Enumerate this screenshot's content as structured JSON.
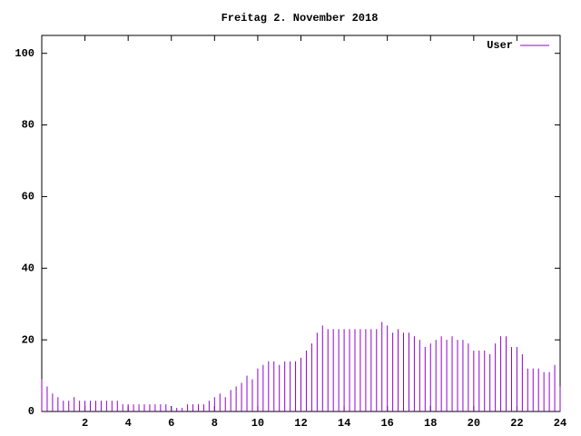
{
  "chart_data": {
    "type": "impulse",
    "title": "Freitag 2. November 2018",
    "series": [
      {
        "name": "User",
        "color": "#9400d3",
        "x": [
          0,
          0.25,
          0.5,
          0.75,
          1,
          1.25,
          1.5,
          1.75,
          2,
          2.25,
          2.5,
          2.75,
          3,
          3.25,
          3.5,
          3.75,
          4,
          4.25,
          4.5,
          4.75,
          5,
          5.25,
          5.5,
          5.75,
          6,
          6.25,
          6.5,
          6.75,
          7,
          7.25,
          7.5,
          7.75,
          8,
          8.25,
          8.5,
          8.75,
          9,
          9.25,
          9.5,
          9.75,
          10,
          10.25,
          10.5,
          10.75,
          11,
          11.25,
          11.5,
          11.75,
          12,
          12.25,
          12.5,
          12.75,
          13,
          13.25,
          13.5,
          13.75,
          14,
          14.25,
          14.5,
          14.75,
          15,
          15.25,
          15.5,
          15.75,
          16,
          16.25,
          16.5,
          16.75,
          17,
          17.25,
          17.5,
          17.75,
          18,
          18.25,
          18.5,
          18.75,
          19,
          19.25,
          19.5,
          19.75,
          20,
          20.25,
          20.5,
          20.75,
          21,
          21.25,
          21.5,
          21.75,
          22,
          22.25,
          22.5,
          22.75,
          23,
          23.25,
          23.5,
          23.75,
          24
        ],
        "values": [
          9,
          7,
          5,
          4,
          3,
          3,
          4,
          3,
          3,
          3,
          3,
          3,
          3,
          3,
          3,
          2,
          2,
          2,
          2,
          2,
          2,
          2,
          2,
          2,
          1,
          1,
          1,
          2,
          2,
          2,
          2,
          3,
          4,
          5,
          4,
          6,
          7,
          8,
          10,
          9,
          12,
          13,
          14,
          14,
          13,
          14,
          14,
          14,
          15,
          17,
          19,
          22,
          24,
          23,
          23,
          23,
          23,
          23,
          23,
          23,
          23,
          23,
          23,
          25,
          24,
          22,
          23,
          22,
          22,
          21,
          20,
          18,
          19,
          20,
          21,
          20,
          21,
          20,
          20,
          19,
          17,
          17,
          17,
          16,
          19,
          21,
          21,
          18,
          18,
          16,
          12,
          12,
          12,
          11,
          11,
          13,
          7
        ]
      }
    ],
    "xlim": [
      0,
      24
    ],
    "xticks": [
      2,
      4,
      6,
      8,
      10,
      12,
      14,
      16,
      18,
      20,
      22,
      24
    ],
    "ylim": [
      0,
      105
    ],
    "yticks": [
      0,
      20,
      40,
      60,
      80,
      100
    ],
    "legend": "top-right"
  }
}
